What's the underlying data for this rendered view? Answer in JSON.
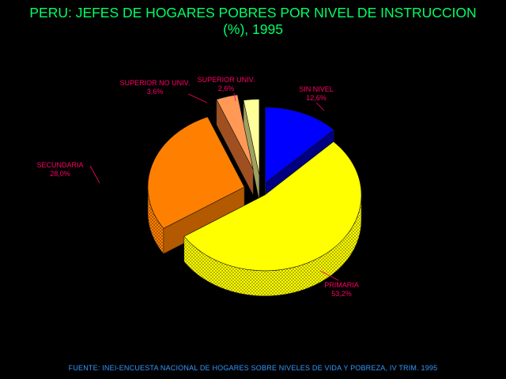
{
  "chart_data": {
    "type": "pie",
    "title": [
      "PERU: JEFES DE HOGARES POBRES POR NIVEL DE INSTRUCCION",
      "(%), 1995"
    ],
    "slices": [
      {
        "label": "SIN NIVEL",
        "value_text": "12,6%",
        "value": 12.6,
        "color": "#0000ff",
        "side": "#000080"
      },
      {
        "label": "PRIMARIA",
        "value_text": "53,2%",
        "value": 53.2,
        "color": "#ffff00",
        "side": "#b3b300"
      },
      {
        "label": "SECUNDARIA",
        "value_text": "28,0%",
        "value": 28.0,
        "color": "#ff8000",
        "side": "#b35900"
      },
      {
        "label": "SUPERIOR NO UNIV.",
        "value_text": "3,6%",
        "value": 3.6,
        "color": "#ff9955",
        "side": "#a05020"
      },
      {
        "label": "SUPERIOR UNIV.",
        "value_text": "2,6%",
        "value": 2.6,
        "color": "#ffff99",
        "side": "#a0a060"
      }
    ],
    "label_color": "#ff0066"
  },
  "source": "FUENTE: INEI-ENCUESTA NACIONAL DE HOGARES SOBRE NIVELES DE VIDA Y POBREZA, IV TRIM. 1995"
}
